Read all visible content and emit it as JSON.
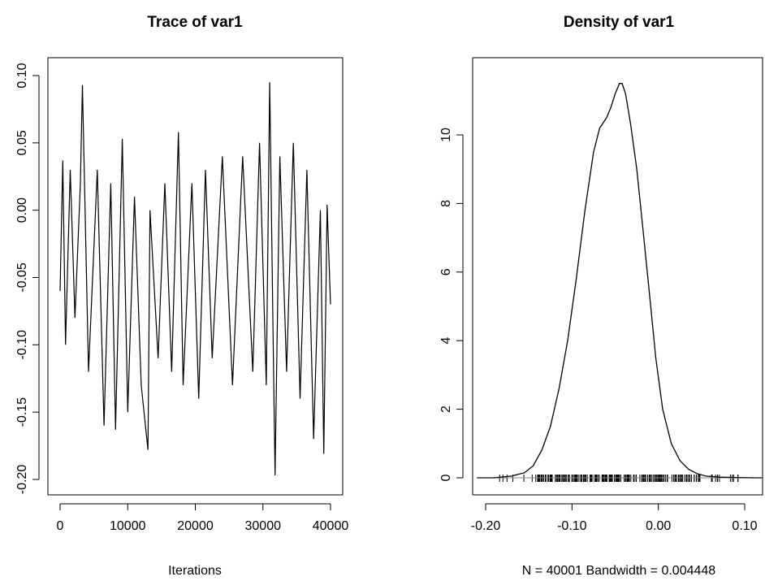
{
  "chart_data": [
    {
      "type": "line",
      "title": "Trace of var1",
      "xlabel": "Iterations",
      "ylabel": "",
      "xlim": [
        0,
        40000
      ],
      "ylim": [
        -0.2,
        0.1
      ],
      "xticks": [
        0,
        10000,
        20000,
        30000,
        40000
      ],
      "xtick_labels": [
        "0",
        "10000",
        "20000",
        "30000",
        "40000"
      ],
      "yticks": [
        -0.2,
        -0.15,
        -0.1,
        -0.05,
        0.0,
        0.05,
        0.1
      ],
      "ytick_labels": [
        "-0.20",
        "-0.15",
        "-0.10",
        "-0.05",
        "0.00",
        "0.05",
        "0.10"
      ],
      "series": [
        {
          "x": [
            0,
            400,
            800,
            1500,
            2200,
            3000,
            3300,
            4200,
            5500,
            6500,
            7500,
            8200,
            9200,
            10000,
            11000,
            12000,
            13000,
            13300,
            14500,
            15500,
            16500,
            17500,
            18200,
            19500,
            20500,
            21500,
            22500,
            24000,
            25500,
            27000,
            28500,
            29500,
            30500,
            31000,
            31500,
            31800,
            32500,
            33500,
            34500,
            35500,
            36500,
            37500,
            38500,
            39000,
            39500,
            40000
          ],
          "y": [
            -0.06,
            0.037,
            -0.1,
            0.03,
            -0.08,
            0.02,
            0.093,
            -0.12,
            0.03,
            -0.16,
            0.02,
            -0.163,
            0.053,
            -0.15,
            0.01,
            -0.13,
            -0.178,
            0.0,
            -0.11,
            0.02,
            -0.12,
            0.058,
            -0.13,
            0.02,
            -0.14,
            0.03,
            -0.11,
            0.04,
            -0.13,
            0.04,
            -0.12,
            0.05,
            -0.13,
            0.095,
            -0.09,
            -0.197,
            0.04,
            -0.12,
            0.05,
            -0.14,
            0.03,
            -0.17,
            0.0,
            -0.181,
            0.004,
            -0.07
          ]
        }
      ]
    },
    {
      "type": "line",
      "title": "Density of var1",
      "xlabel": "N = 40001   Bandwidth = 0.004448",
      "ylabel": "",
      "xlim": [
        -0.215,
        0.12
      ],
      "ylim": [
        0,
        11.5
      ],
      "xticks": [
        -0.2,
        -0.1,
        0.0,
        0.1
      ],
      "xtick_labels": [
        "-0.20",
        "-0.10",
        "0.00",
        "0.10"
      ],
      "yticks": [
        0,
        2,
        4,
        6,
        8,
        10
      ],
      "ytick_labels": [
        "0",
        "2",
        "4",
        "6",
        "8",
        "10"
      ],
      "series": [
        {
          "x": [
            -0.21,
            -0.19,
            -0.17,
            -0.155,
            -0.145,
            -0.135,
            -0.125,
            -0.115,
            -0.105,
            -0.095,
            -0.085,
            -0.075,
            -0.068,
            -0.06,
            -0.055,
            -0.05,
            -0.045,
            -0.042,
            -0.038,
            -0.032,
            -0.025,
            -0.018,
            -0.01,
            -0.003,
            0.005,
            0.015,
            0.025,
            0.035,
            0.045,
            0.055,
            0.07,
            0.09,
            0.11,
            0.12
          ],
          "y": [
            0.0,
            0.0,
            0.05,
            0.15,
            0.35,
            0.8,
            1.5,
            2.6,
            4.0,
            5.8,
            7.8,
            9.5,
            10.2,
            10.5,
            10.8,
            11.2,
            11.5,
            11.5,
            11.2,
            10.3,
            9.0,
            7.3,
            5.3,
            3.5,
            2.0,
            1.0,
            0.5,
            0.25,
            0.12,
            0.05,
            0.02,
            0.01,
            0.0,
            0.0
          ]
        }
      ],
      "rug_range": [
        -0.19,
        0.095
      ]
    }
  ]
}
